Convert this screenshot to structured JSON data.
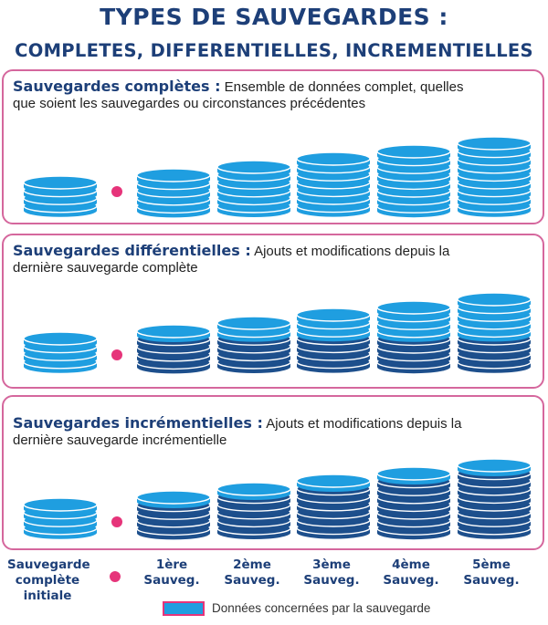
{
  "title": "TYPES DE SAUVEGARDES :",
  "subtitle": "COMPLETES, DIFFERENTIELLES, INCREMENTIELLES",
  "panels": [
    {
      "heading": "Sauvegardes complètes :",
      "description": "Ensemble de données complet, quelles que soient les  sauvegardes ou circonstances précédentes",
      "stacks": [
        {
          "new_disks": 4,
          "old_disks": 0
        },
        {
          "new_disks": 5,
          "old_disks": 0
        },
        {
          "new_disks": 6,
          "old_disks": 0
        },
        {
          "new_disks": 7,
          "old_disks": 0
        },
        {
          "new_disks": 8,
          "old_disks": 0
        },
        {
          "new_disks": 9,
          "old_disks": 0
        }
      ]
    },
    {
      "heading": "Sauvegardes différentielles :",
      "description": "Ajouts et modifications depuis la dernière sauvegarde complète",
      "stacks": [
        {
          "new_disks": 4,
          "old_disks": 0
        },
        {
          "new_disks": 1,
          "old_disks": 4
        },
        {
          "new_disks": 2,
          "old_disks": 4
        },
        {
          "new_disks": 3,
          "old_disks": 4
        },
        {
          "new_disks": 4,
          "old_disks": 4
        },
        {
          "new_disks": 5,
          "old_disks": 4
        }
      ]
    },
    {
      "heading": "Sauvegardes incrémentielles :",
      "description": "Ajouts et modifications depuis la dernière sauvegarde incrémentielle",
      "stacks": [
        {
          "new_disks": 4,
          "old_disks": 0
        },
        {
          "new_disks": 1,
          "old_disks": 4
        },
        {
          "new_disks": 1,
          "old_disks": 5
        },
        {
          "new_disks": 1,
          "old_disks": 6
        },
        {
          "new_disks": 1,
          "old_disks": 7
        },
        {
          "new_disks": 1,
          "old_disks": 8
        }
      ]
    }
  ],
  "columns": [
    "Sauvegarde complète initiale",
    "1ère Sauveg.",
    "2ème Sauveg.",
    "3ème Sauveg.",
    "4ème Sauveg.",
    "5ème Sauveg."
  ],
  "legend": {
    "text": "Données concernées par la sauvegarde"
  },
  "colors": {
    "title": "#1d3f78",
    "panel_border": "#d5679d",
    "new_data_disk": "#1f9ee0",
    "existing_data_disk": "#1d4f8c",
    "separator_dot": "#e6347a"
  }
}
